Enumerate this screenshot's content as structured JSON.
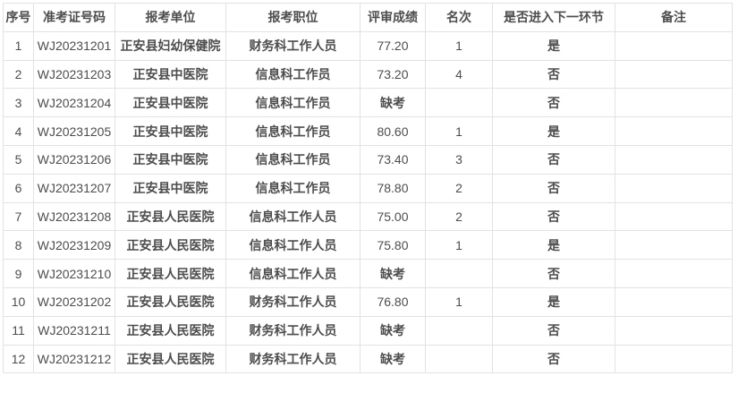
{
  "colors": {
    "text": "#4d4d4d",
    "border": "#e2e2e2",
    "background": "#ffffff"
  },
  "table": {
    "columns": [
      {
        "key": "no",
        "label": "序号"
      },
      {
        "key": "ticket",
        "label": "准考证号码"
      },
      {
        "key": "unit",
        "label": "报考单位"
      },
      {
        "key": "position",
        "label": "报考职位"
      },
      {
        "key": "score",
        "label": "评审成绩"
      },
      {
        "key": "rank",
        "label": "名次"
      },
      {
        "key": "next",
        "label": "是否进入下一环节"
      },
      {
        "key": "remark",
        "label": "备注"
      }
    ],
    "rows": [
      {
        "no": "1",
        "ticket": "WJ20231201",
        "unit": "正安县妇幼保健院",
        "position": "财务科工作人员",
        "score": "77.20",
        "rank": "1",
        "next": "是",
        "remark": ""
      },
      {
        "no": "2",
        "ticket": "WJ20231203",
        "unit": "正安县中医院",
        "position": "信息科工作员",
        "score": "73.20",
        "rank": "4",
        "next": "否",
        "remark": ""
      },
      {
        "no": "3",
        "ticket": "WJ20231204",
        "unit": "正安县中医院",
        "position": "信息科工作员",
        "score": "缺考",
        "rank": "",
        "next": "否",
        "remark": ""
      },
      {
        "no": "4",
        "ticket": "WJ20231205",
        "unit": "正安县中医院",
        "position": "信息科工作员",
        "score": "80.60",
        "rank": "1",
        "next": "是",
        "remark": ""
      },
      {
        "no": "5",
        "ticket": "WJ20231206",
        "unit": "正安县中医院",
        "position": "信息科工作员",
        "score": "73.40",
        "rank": "3",
        "next": "否",
        "remark": ""
      },
      {
        "no": "6",
        "ticket": "WJ20231207",
        "unit": "正安县中医院",
        "position": "信息科工作员",
        "score": "78.80",
        "rank": "2",
        "next": "否",
        "remark": ""
      },
      {
        "no": "7",
        "ticket": "WJ20231208",
        "unit": "正安县人民医院",
        "position": "信息科工作人员",
        "score": "75.00",
        "rank": "2",
        "next": "否",
        "remark": ""
      },
      {
        "no": "8",
        "ticket": "WJ20231209",
        "unit": "正安县人民医院",
        "position": "信息科工作人员",
        "score": "75.80",
        "rank": "1",
        "next": "是",
        "remark": ""
      },
      {
        "no": "9",
        "ticket": "WJ20231210",
        "unit": "正安县人民医院",
        "position": "信息科工作人员",
        "score": "缺考",
        "rank": "",
        "next": "否",
        "remark": ""
      },
      {
        "no": "10",
        "ticket": "WJ20231202",
        "unit": "正安县人民医院",
        "position": "财务科工作人员",
        "score": "76.80",
        "rank": "1",
        "next": "是",
        "remark": ""
      },
      {
        "no": "11",
        "ticket": "WJ20231211",
        "unit": "正安县人民医院",
        "position": "财务科工作人员",
        "score": "缺考",
        "rank": "",
        "next": "否",
        "remark": ""
      },
      {
        "no": "12",
        "ticket": "WJ20231212",
        "unit": "正安县人民医院",
        "position": "财务科工作人员",
        "score": "缺考",
        "rank": "",
        "next": "否",
        "remark": ""
      }
    ]
  }
}
